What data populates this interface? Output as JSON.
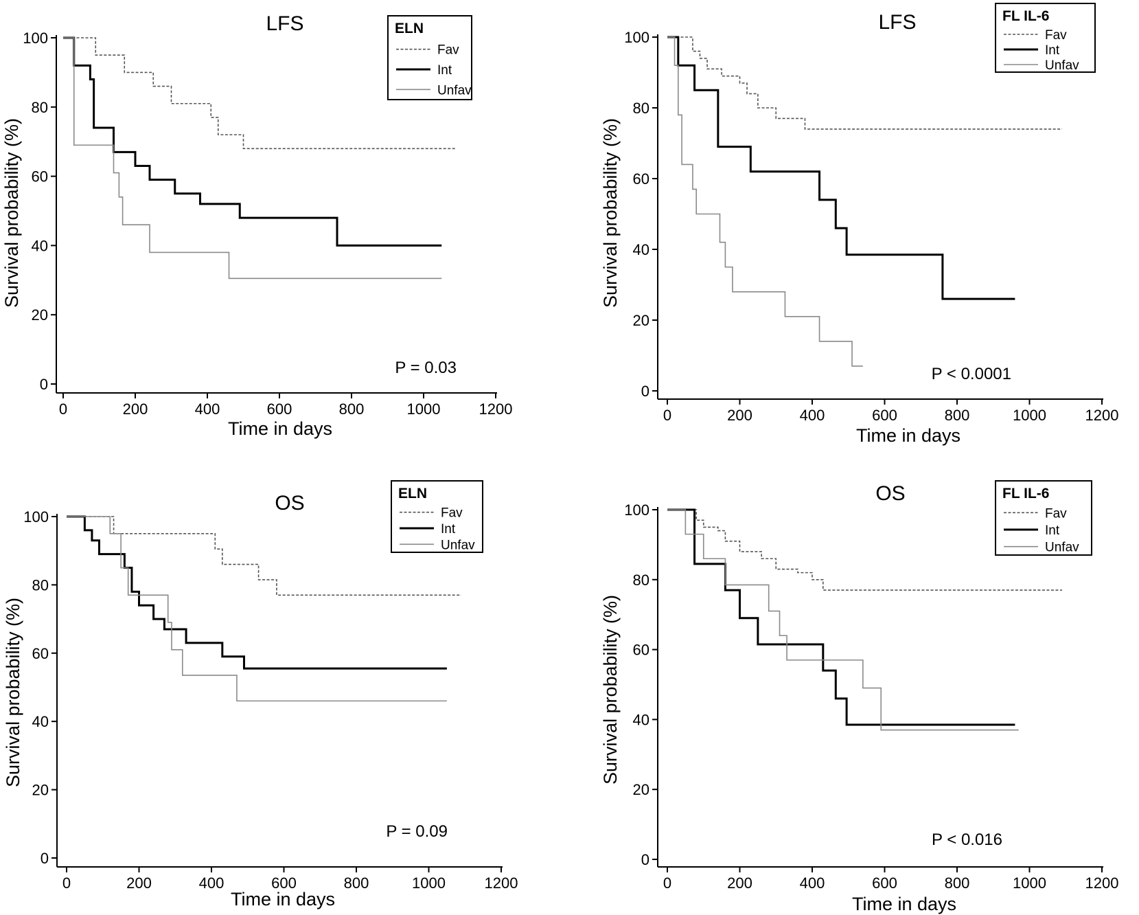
{
  "chart_data": [
    {
      "type": "line",
      "title": "LFS",
      "xlabel": "Time in days",
      "ylabel": "Survival probability (%)",
      "xlim": [
        0,
        1200
      ],
      "ylim": [
        0,
        100
      ],
      "xticks": [
        "0",
        "200",
        "400",
        "600",
        "800",
        "1000",
        "1200"
      ],
      "yticks": [
        "0",
        "20",
        "40",
        "60",
        "80",
        "100"
      ],
      "legend_title": "ELN",
      "legend_position": "top-right",
      "pvalue": "P = 0.03",
      "series": [
        {
          "name": "Fav",
          "style": "dashed",
          "color": "#555555",
          "x": [
            0,
            30,
            90,
            170,
            250,
            300,
            410,
            430,
            500,
            1090
          ],
          "y": [
            100,
            100,
            95,
            90,
            86,
            81,
            77,
            72,
            68,
            68
          ]
        },
        {
          "name": "Int",
          "style": "solid",
          "color": "#000000",
          "x": [
            0,
            30,
            75,
            85,
            140,
            200,
            240,
            310,
            380,
            490,
            760,
            1050
          ],
          "y": [
            100,
            92,
            88,
            74,
            67,
            63,
            59,
            55,
            52,
            48,
            40,
            40
          ]
        },
        {
          "name": "Unfav",
          "style": "gray",
          "color": "#8a8a8a",
          "x": [
            0,
            30,
            140,
            155,
            165,
            240,
            460,
            1050
          ],
          "y": [
            100,
            69,
            61,
            54,
            46,
            38,
            30.5,
            30.5
          ]
        }
      ]
    },
    {
      "type": "line",
      "title": "LFS",
      "xlabel": "Time in days",
      "ylabel": "Survival probability (%)",
      "xlim": [
        0,
        1200
      ],
      "ylim": [
        0,
        100
      ],
      "xticks": [
        "0",
        "200",
        "400",
        "600",
        "800",
        "1000",
        "1200"
      ],
      "yticks": [
        "0",
        "20",
        "40",
        "60",
        "80",
        "100"
      ],
      "legend_title": "FL IL-6",
      "legend_position": "top-right",
      "pvalue": "P < 0.0001",
      "series": [
        {
          "name": "Fav",
          "style": "dashed",
          "color": "#555555",
          "x": [
            0,
            70,
            90,
            110,
            150,
            200,
            220,
            250,
            300,
            380,
            1090
          ],
          "y": [
            100,
            96,
            94,
            91,
            89,
            87,
            84,
            80,
            77,
            74,
            74
          ]
        },
        {
          "name": "Int",
          "style": "solid",
          "color": "#000000",
          "x": [
            0,
            30,
            75,
            140,
            230,
            420,
            465,
            495,
            760,
            960
          ],
          "y": [
            100,
            92,
            85,
            69,
            62,
            54,
            46,
            38.5,
            26,
            26
          ]
        },
        {
          "name": "Unfav",
          "style": "gray",
          "color": "#8a8a8a",
          "x": [
            0,
            20,
            30,
            40,
            70,
            80,
            145,
            160,
            180,
            200,
            325,
            420,
            510,
            540
          ],
          "y": [
            100,
            92,
            78,
            64,
            57,
            50,
            42,
            35,
            28,
            28,
            21,
            14,
            7,
            7
          ]
        }
      ]
    },
    {
      "type": "line",
      "title": "OS",
      "xlabel": "Time in days",
      "ylabel": "Survival probability (%)",
      "xlim": [
        0,
        1200
      ],
      "ylim": [
        0,
        100
      ],
      "xticks": [
        "0",
        "200",
        "400",
        "600",
        "800",
        "1000",
        "1200"
      ],
      "yticks": [
        "0",
        "20",
        "40",
        "60",
        "80",
        "100"
      ],
      "legend_title": "ELN",
      "legend_position": "top-right",
      "pvalue": "P = 0.09",
      "series": [
        {
          "name": "Fav",
          "style": "dashed",
          "color": "#555555",
          "x": [
            0,
            110,
            130,
            410,
            430,
            530,
            580,
            1090
          ],
          "y": [
            100,
            100,
            95,
            90.5,
            86,
            81.5,
            77,
            77
          ]
        },
        {
          "name": "Int",
          "style": "solid",
          "color": "#000000",
          "x": [
            0,
            50,
            70,
            90,
            160,
            180,
            200,
            240,
            270,
            330,
            430,
            490,
            1050
          ],
          "y": [
            100,
            96,
            93,
            89,
            85,
            78,
            74,
            70,
            67,
            63,
            59,
            55.5,
            55.5
          ]
        },
        {
          "name": "Unfav",
          "style": "gray",
          "color": "#8a8a8a",
          "x": [
            0,
            100,
            120,
            150,
            170,
            280,
            290,
            320,
            470,
            1050
          ],
          "y": [
            100,
            100,
            95,
            85,
            77,
            69,
            61,
            53.5,
            46,
            46
          ]
        }
      ]
    },
    {
      "type": "line",
      "title": "OS",
      "xlabel": "Time in days",
      "ylabel": "Survival probability (%)",
      "xlim": [
        0,
        1200
      ],
      "ylim": [
        0,
        100
      ],
      "xticks": [
        "0",
        "200",
        "400",
        "600",
        "800",
        "1000",
        "1200"
      ],
      "yticks": [
        "0",
        "20",
        "40",
        "60",
        "80",
        "100"
      ],
      "legend_title": "FL IL-6",
      "legend_position": "top-right",
      "pvalue": "P < 0.016",
      "series": [
        {
          "name": "Fav",
          "style": "dashed",
          "color": "#555555",
          "x": [
            0,
            80,
            100,
            140,
            160,
            200,
            260,
            300,
            360,
            400,
            430,
            1090
          ],
          "y": [
            100,
            97,
            95,
            94,
            91,
            88,
            86,
            83,
            82,
            80,
            77,
            77
          ]
        },
        {
          "name": "Int",
          "style": "solid",
          "color": "#000000",
          "x": [
            0,
            75,
            160,
            200,
            250,
            430,
            465,
            495,
            960
          ],
          "y": [
            100,
            84.5,
            77,
            69,
            61.5,
            54,
            46,
            38.5,
            38.5
          ]
        },
        {
          "name": "Unfav",
          "style": "gray",
          "color": "#8a8a8a",
          "x": [
            0,
            50,
            100,
            160,
            280,
            310,
            330,
            540,
            590,
            970
          ],
          "y": [
            100,
            93,
            86,
            78.5,
            71,
            64,
            57,
            49,
            37,
            37
          ]
        }
      ]
    }
  ]
}
